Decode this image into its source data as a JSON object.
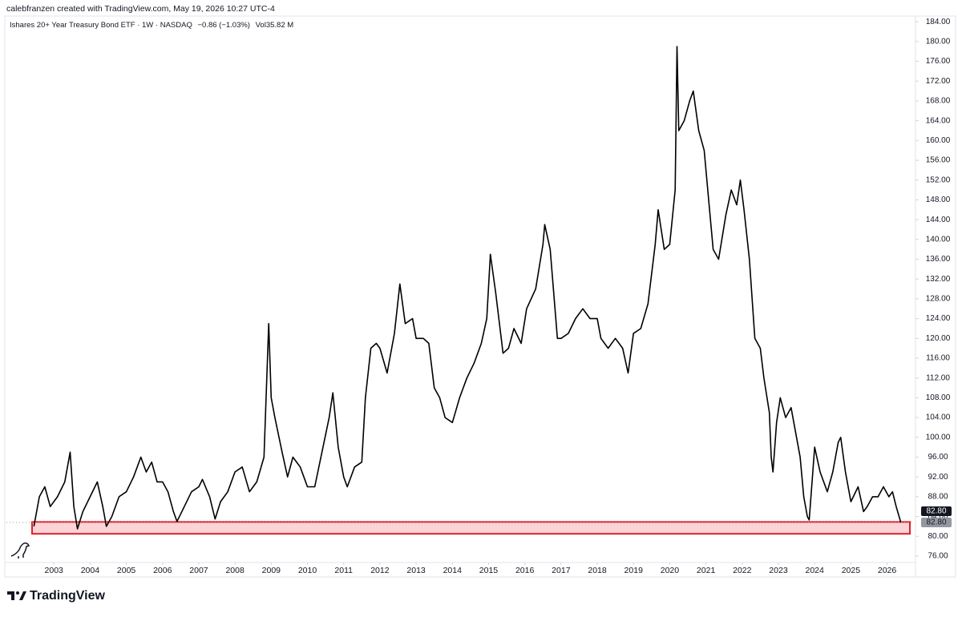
{
  "chart_data": {
    "type": "line",
    "header": "calebfranzen created with TradingView.com, May 19, 2026 10:27 UTC-4",
    "symbol": "Ishares 20+ Year Treasury Bond ETF · 1W · NASDAQ",
    "change": "−0.86 (−1.03%)",
    "volume_label": "Vol",
    "volume": "35.82 M",
    "brand": "TradingView",
    "x": [
      2002.45,
      2002.6,
      2002.75,
      2002.9,
      2003.1,
      2003.3,
      2003.45,
      2003.55,
      2003.65,
      2003.8,
      2004.0,
      2004.2,
      2004.35,
      2004.45,
      2004.6,
      2004.8,
      2005.0,
      2005.2,
      2005.4,
      2005.55,
      2005.7,
      2005.85,
      2006.0,
      2006.15,
      2006.3,
      2006.4,
      2006.6,
      2006.8,
      2007.0,
      2007.1,
      2007.3,
      2007.45,
      2007.6,
      2007.8,
      2008.0,
      2008.2,
      2008.4,
      2008.6,
      2008.8,
      2008.93,
      2009.0,
      2009.1,
      2009.3,
      2009.45,
      2009.6,
      2009.8,
      2010.0,
      2010.2,
      2010.4,
      2010.6,
      2010.7,
      2010.85,
      2011.0,
      2011.1,
      2011.3,
      2011.5,
      2011.6,
      2011.75,
      2011.9,
      2012.0,
      2012.2,
      2012.4,
      2012.55,
      2012.7,
      2012.9,
      2013.0,
      2013.2,
      2013.35,
      2013.5,
      2013.65,
      2013.8,
      2014.0,
      2014.2,
      2014.4,
      2014.6,
      2014.8,
      2014.95,
      2015.05,
      2015.2,
      2015.4,
      2015.55,
      2015.7,
      2015.9,
      2016.05,
      2016.3,
      2016.5,
      2016.55,
      2016.7,
      2016.9,
      2017.0,
      2017.2,
      2017.4,
      2017.6,
      2017.8,
      2018.0,
      2018.1,
      2018.3,
      2018.5,
      2018.7,
      2018.85,
      2019.0,
      2019.2,
      2019.4,
      2019.6,
      2019.68,
      2019.85,
      2020.0,
      2020.15,
      2020.2,
      2020.25,
      2020.4,
      2020.55,
      2020.65,
      2020.8,
      2020.95,
      2021.1,
      2021.2,
      2021.35,
      2021.55,
      2021.7,
      2021.85,
      2021.95,
      2022.05,
      2022.2,
      2022.35,
      2022.5,
      2022.6,
      2022.75,
      2022.8,
      2022.85,
      2022.95,
      2023.05,
      2023.2,
      2023.35,
      2023.5,
      2023.6,
      2023.7,
      2023.8,
      2023.85,
      2023.95,
      2024.0,
      2024.15,
      2024.35,
      2024.5,
      2024.65,
      2024.72,
      2024.85,
      2025.0,
      2025.2,
      2025.35,
      2025.45,
      2025.6,
      2025.75,
      2025.9,
      2026.05,
      2026.15,
      2026.25,
      2026.38
    ],
    "series": [
      {
        "name": "Ishares 20+ Year Treasury Bond ETF",
        "color": "#000000",
        "values": [
          82,
          88,
          90,
          86,
          88,
          91,
          97,
          86,
          81.5,
          85,
          88,
          91,
          86,
          82,
          84,
          88,
          89,
          92,
          96,
          93,
          95,
          91,
          91,
          89,
          85,
          83,
          86,
          89,
          90,
          91.5,
          88,
          83.5,
          87,
          89,
          93,
          94,
          89,
          91,
          96,
          123,
          108,
          104,
          97,
          92,
          96,
          94,
          90,
          90,
          97,
          104,
          109,
          98,
          92,
          90,
          94,
          95,
          108,
          118,
          119,
          118,
          113,
          121,
          131,
          123,
          124,
          120,
          120,
          119,
          110,
          108,
          104,
          103,
          108,
          112,
          115,
          119,
          124,
          137,
          129,
          117,
          118,
          122,
          119,
          126,
          130,
          139,
          143,
          138,
          120,
          120,
          121,
          124,
          126,
          124,
          124,
          120,
          118,
          120,
          118,
          113,
          121,
          122,
          127,
          139,
          146,
          138,
          139,
          150,
          179,
          162,
          164,
          168,
          170,
          162,
          158,
          146,
          138,
          136,
          145,
          150,
          147,
          152,
          146,
          136,
          120,
          118,
          112,
          105,
          96,
          93,
          103,
          108,
          104,
          106,
          100,
          96,
          88,
          84,
          83.3,
          93,
          98,
          93,
          89,
          93,
          99,
          100,
          93,
          87,
          90,
          85,
          86,
          88,
          88,
          90,
          88,
          89,
          86,
          82.8
        ]
      }
    ],
    "zone": {
      "low": 80.5,
      "high": 82.9
    },
    "price_labels": [
      {
        "value": 82.8,
        "label": "82.80"
      },
      {
        "value": 82.8,
        "label": "82.80"
      }
    ],
    "xlim": [
      2001.69,
      2026.74
    ],
    "ylim": [
      74.7,
      187.1
    ],
    "xticks": [
      2003,
      2004,
      2005,
      2006,
      2007,
      2008,
      2009,
      2010,
      2011,
      2012,
      2013,
      2014,
      2015,
      2016,
      2017,
      2018,
      2019,
      2020,
      2021,
      2022,
      2023,
      2024,
      2025,
      2026
    ],
    "yticks": [
      {
        "value": 76,
        "label": "76.00"
      },
      {
        "value": 80,
        "label": "80.00"
      },
      {
        "value": 84,
        "label": "84.00"
      },
      {
        "value": 88,
        "label": "88.00"
      },
      {
        "value": 92,
        "label": "92.00"
      },
      {
        "value": 96,
        "label": "96.00"
      },
      {
        "value": 100,
        "label": "100.00"
      },
      {
        "value": 104,
        "label": "104.00"
      },
      {
        "value": 108,
        "label": "108.00"
      },
      {
        "value": 112,
        "label": "112.00"
      },
      {
        "value": 116,
        "label": "116.00"
      },
      {
        "value": 120,
        "label": "120.00"
      },
      {
        "value": 124,
        "label": "124.00"
      },
      {
        "value": 128,
        "label": "128.00"
      },
      {
        "value": 132,
        "label": "132.00"
      },
      {
        "value": 136,
        "label": "136.00"
      },
      {
        "value": 140,
        "label": "140.00"
      },
      {
        "value": 144,
        "label": "144.00"
      },
      {
        "value": 148,
        "label": "148.00"
      },
      {
        "value": 152,
        "label": "152.00"
      },
      {
        "value": 156,
        "label": "156.00"
      },
      {
        "value": 160,
        "label": "160.00"
      },
      {
        "value": 164,
        "label": "164.00"
      },
      {
        "value": 168,
        "label": "168.00"
      },
      {
        "value": 172,
        "label": "172.00"
      },
      {
        "value": 176,
        "label": "176.00"
      },
      {
        "value": 180,
        "label": "180.00"
      },
      {
        "value": 184,
        "label": "184.00"
      }
    ],
    "grid": false
  }
}
